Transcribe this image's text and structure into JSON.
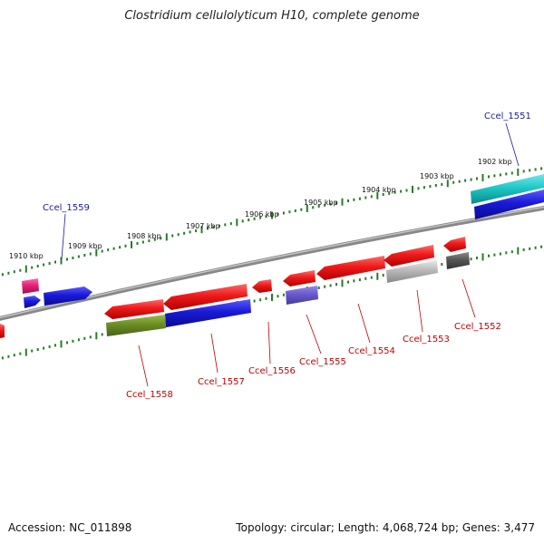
{
  "title": "Clostridium cellulolyticum H10, complete genome",
  "footer": {
    "accession": "Accession: NC_011898",
    "summary": "Topology: circular; Length: 4,068,724 bp; Genes: 3,477"
  },
  "scale_labels": [
    "1910 kbp",
    "1909 kbp",
    "1908 kbp",
    "1907 kbp",
    "1906 kbp",
    "1905 kbp",
    "1904 kbp",
    "1903 kbp",
    "1902 kbp"
  ],
  "colors": {
    "backbone": "#888888",
    "tick": "#2a7a2a",
    "forward_label": "#1a1aa0",
    "reverse_label": "#c00000",
    "red": "#e81818",
    "blue": "#1a1ad0",
    "olive": "#6b8e23",
    "pink": "#e8207a",
    "cyan": "#20c8c8",
    "slate": "#6a5acd",
    "silver": "#b8b8b8",
    "dark_grey": "#555555"
  },
  "gene_labels": [
    "Ccel_1551",
    "Ccel_1559",
    "Ccel_1558",
    "Ccel_1557",
    "Ccel_1556",
    "Ccel_1555",
    "Ccel_1554",
    "Ccel_1553",
    "Ccel_1552"
  ]
}
